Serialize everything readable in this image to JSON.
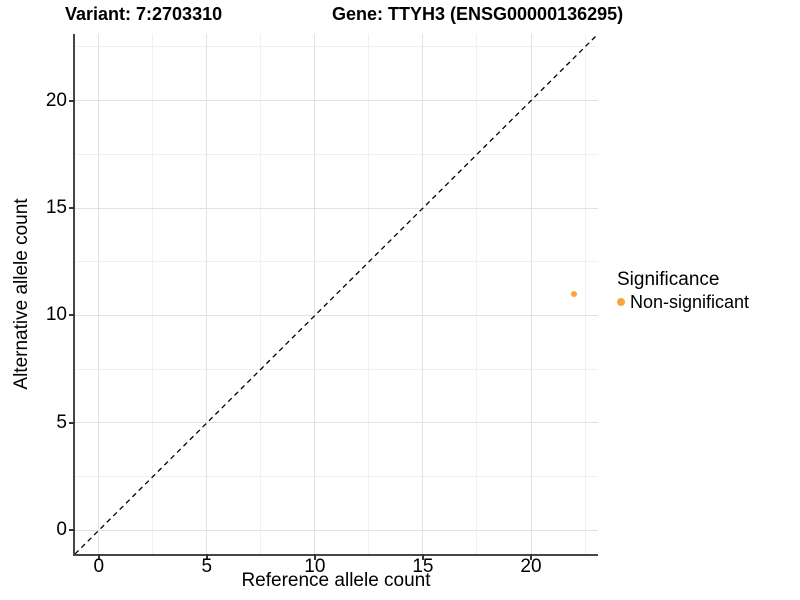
{
  "titles": {
    "variant": "Variant: 7:2703310",
    "gene": "Gene: TTYH3 (ENSG00000136295)"
  },
  "legend": {
    "title": "Significance",
    "items": [
      {
        "label": "Non-significant",
        "color": "#FAA43A"
      }
    ]
  },
  "chart_data": {
    "type": "scatter",
    "title": "Variant: 7:2703310 — Gene: TTYH3 (ENSG00000136295)",
    "xlabel": "Reference allele count",
    "ylabel": "Alternative allele count",
    "xlim": [
      -1.1,
      23.1
    ],
    "ylim": [
      -1.1,
      23.1
    ],
    "x_ticks": [
      0,
      5,
      10,
      15,
      20
    ],
    "y_ticks": [
      0,
      5,
      10,
      15,
      20
    ],
    "x_minor_ticks": [
      2.5,
      7.5,
      12.5,
      17.5,
      22.5
    ],
    "y_minor_ticks": [
      2.5,
      7.5,
      12.5,
      17.5,
      22.5
    ],
    "grid": true,
    "legend_position": "right",
    "reference_line": {
      "type": "identity",
      "slope": 1,
      "intercept": 0,
      "style": "dashed",
      "color": "#000000"
    },
    "series": [
      {
        "name": "Non-significant",
        "color": "#FAA43A",
        "points": [
          {
            "x": 22,
            "y": 11
          }
        ]
      }
    ]
  },
  "colors": {
    "point": "#FAA43A",
    "grid_major": "#E2E2E2",
    "grid_minor": "#F0F0F0",
    "axis_line": "#464646",
    "tick_mark": "#333333",
    "background": "#FFFFFF",
    "text": "#000000"
  }
}
